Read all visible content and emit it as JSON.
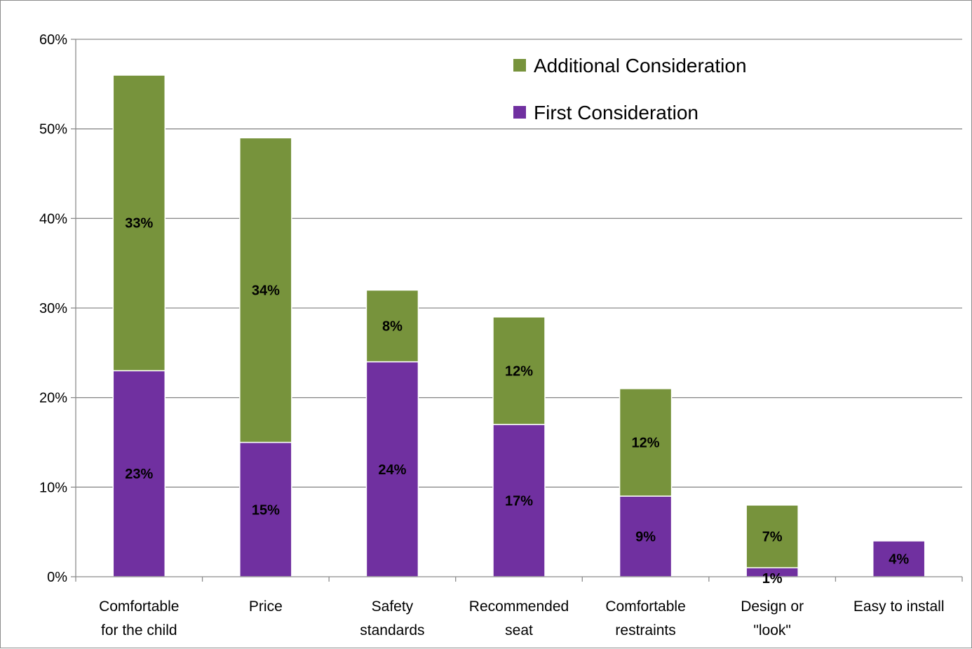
{
  "chart_data": {
    "type": "bar",
    "stacked": true,
    "categories": [
      [
        "Comfortable",
        "for the child"
      ],
      [
        "Price"
      ],
      [
        "Safety",
        "standards"
      ],
      [
        "Recommended",
        "seat"
      ],
      [
        "Comfortable",
        "restraints"
      ],
      [
        "Design or",
        "\"look\""
      ],
      [
        "Easy to install"
      ]
    ],
    "series": [
      {
        "name": "First Consideration",
        "color": "#7030a0",
        "values": [
          23,
          15,
          24,
          17,
          9,
          1,
          4
        ],
        "labels": [
          "23%",
          "15%",
          "24%",
          "17%",
          "9%",
          "1%",
          "4%"
        ]
      },
      {
        "name": "Additional Consideration",
        "color": "#77933c",
        "values": [
          33,
          34,
          8,
          12,
          12,
          7,
          0
        ],
        "labels": [
          "33%",
          "34%",
          "8%",
          "12%",
          "12%",
          "7%",
          ""
        ]
      }
    ],
    "yticks": [
      "0%",
      "10%",
      "20%",
      "30%",
      "40%",
      "50%",
      "60%"
    ],
    "ylim": [
      0,
      60
    ],
    "title": "",
    "xlabel": "",
    "ylabel": "",
    "grid": true,
    "legend_position": "top-right"
  }
}
